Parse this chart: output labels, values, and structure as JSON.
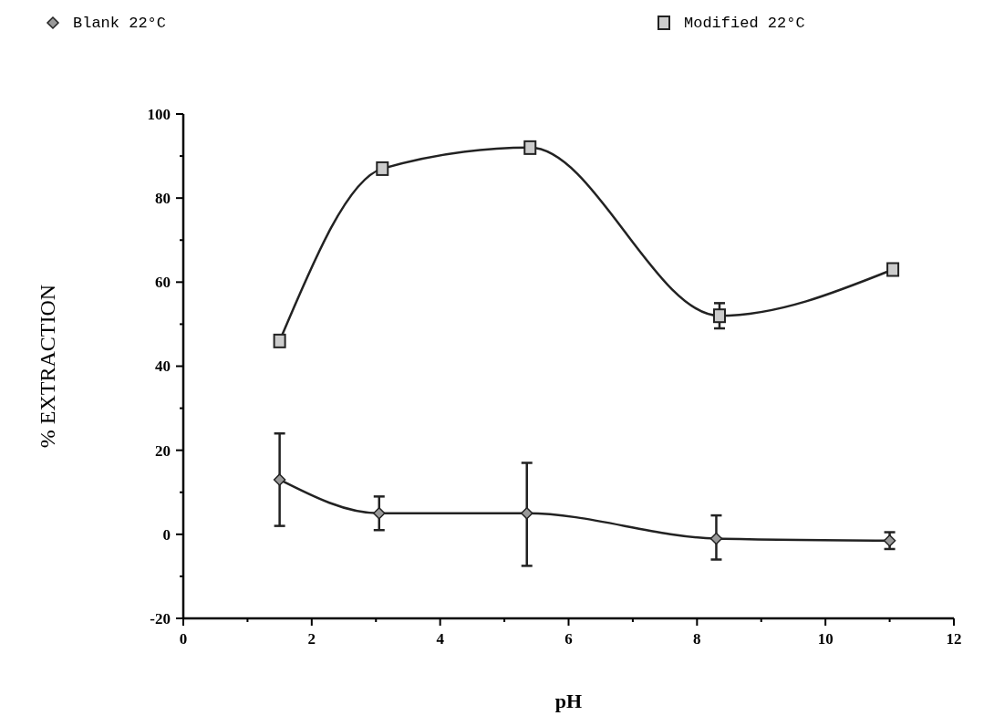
{
  "chart_data": {
    "type": "line",
    "xlabel": "pH",
    "ylabel": "% EXTRACTION",
    "xlim": [
      0,
      12
    ],
    "xticks": [
      0,
      {
        "value": 1,
        "label": null
      },
      2,
      {
        "value": 3,
        "label": null
      },
      4,
      {
        "value": 5,
        "label": null
      },
      6,
      {
        "value": 7,
        "label": null
      },
      8,
      {
        "value": 9,
        "label": null
      },
      10,
      {
        "value": 11,
        "label": null
      },
      12
    ],
    "ylim": [
      -20,
      100
    ],
    "yticks": [
      -20,
      {
        "value": -10,
        "label": null
      },
      0,
      {
        "value": 10,
        "label": null
      },
      20,
      {
        "value": 30,
        "label": null
      },
      40,
      {
        "value": 50,
        "label": null
      },
      60,
      {
        "value": 70,
        "label": null
      },
      80,
      {
        "value": 90,
        "label": null
      },
      100
    ],
    "grid": false,
    "legend": "top",
    "line_style": "solid",
    "series": [
      {
        "name": "Blank 22°C",
        "color": "#222222",
        "marker": "diamond",
        "x": [
          1.5,
          3.05,
          5.35,
          8.3,
          11
        ],
        "values": [
          13,
          5,
          5,
          -1,
          -1.5
        ],
        "errors": [
          [
            2,
            24
          ],
          4,
          [
            -7.5,
            17
          ],
          [
            -6,
            4.5
          ],
          2
        ]
      },
      {
        "name": "Modified 22°C",
        "color": "#222222",
        "marker": "square",
        "x": [
          1.5,
          3.1,
          5.4,
          8.35,
          11.05
        ],
        "values": [
          46,
          87,
          92,
          52,
          63
        ],
        "errors": [
          null,
          null,
          null,
          3,
          null
        ]
      }
    ]
  }
}
